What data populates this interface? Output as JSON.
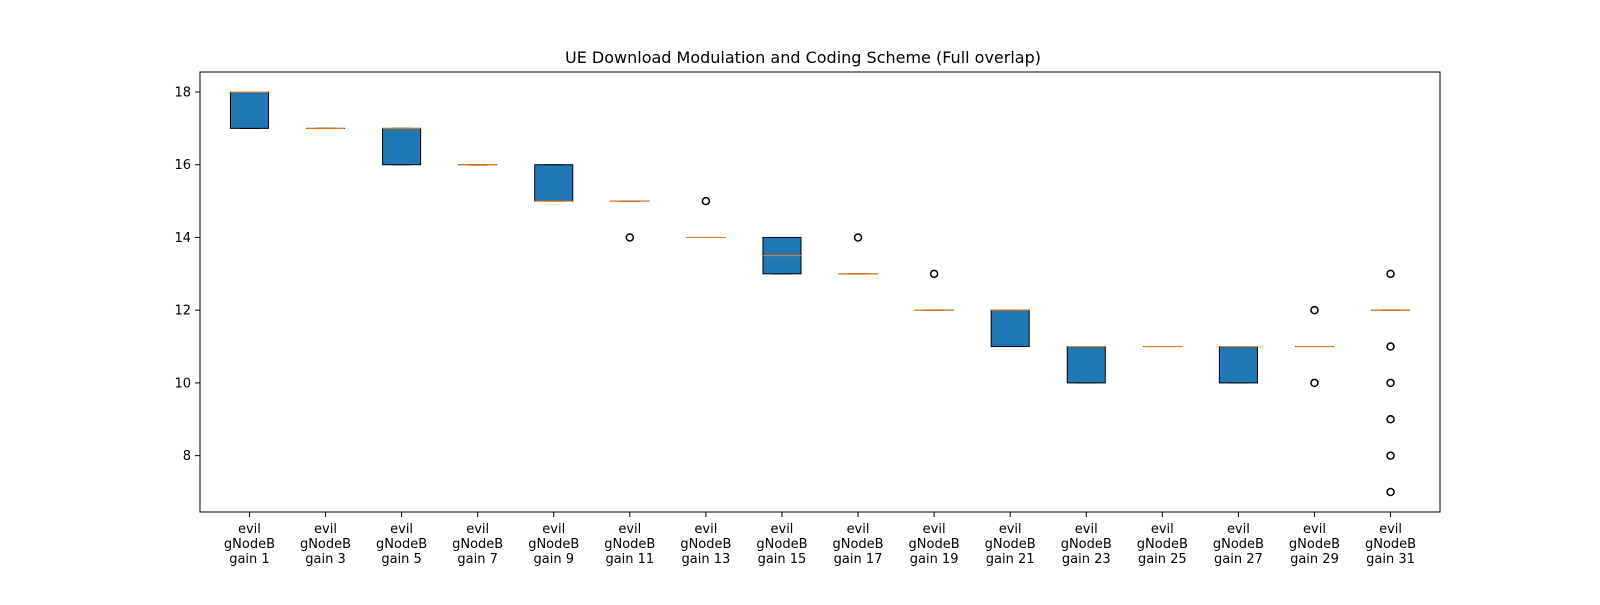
{
  "chart_data": {
    "type": "boxplot",
    "title": "UE Download Modulation and Coding Scheme (Full overlap)",
    "xlabel": "",
    "ylabel": "",
    "ylim": [
      6.45,
      18.55
    ],
    "yticks": [
      8,
      10,
      12,
      14,
      16,
      18
    ],
    "grid": false,
    "colors": {
      "box_fill": "#1f77b4",
      "median": "#ff7f0e",
      "edge": "#000000",
      "flier": "#000000"
    },
    "categories": [
      {
        "label": [
          "evil",
          "gNodeB",
          "gain 1"
        ],
        "q1": 17,
        "median": 18,
        "q3": 18,
        "whislo": 17,
        "whishi": 18,
        "fliers": []
      },
      {
        "label": [
          "evil",
          "gNodeB",
          "gain 3"
        ],
        "q1": 17,
        "median": 17,
        "q3": 17,
        "whislo": 17,
        "whishi": 17,
        "fliers": []
      },
      {
        "label": [
          "evil",
          "gNodeB",
          "gain 5"
        ],
        "q1": 16,
        "median": 17,
        "q3": 17,
        "whislo": 16,
        "whishi": 17,
        "fliers": []
      },
      {
        "label": [
          "evil",
          "gNodeB",
          "gain 7"
        ],
        "q1": 16,
        "median": 16,
        "q3": 16,
        "whislo": 16,
        "whishi": 16,
        "fliers": []
      },
      {
        "label": [
          "evil",
          "gNodeB",
          "gain 9"
        ],
        "q1": 15,
        "median": 15,
        "q3": 16,
        "whislo": 15,
        "whishi": 16,
        "fliers": []
      },
      {
        "label": [
          "evil",
          "gNodeB",
          "gain 11"
        ],
        "q1": 15,
        "median": 15,
        "q3": 15,
        "whislo": 15,
        "whishi": 15,
        "fliers": [
          14
        ]
      },
      {
        "label": [
          "evil",
          "gNodeB",
          "gain 13"
        ],
        "q1": 14,
        "median": 14,
        "q3": 14,
        "whislo": 14,
        "whishi": 14,
        "fliers": [
          15
        ]
      },
      {
        "label": [
          "evil",
          "gNodeB",
          "gain 15"
        ],
        "q1": 13,
        "median": 13.5,
        "q3": 14,
        "whislo": 13,
        "whishi": 14,
        "fliers": []
      },
      {
        "label": [
          "evil",
          "gNodeB",
          "gain 17"
        ],
        "q1": 13,
        "median": 13,
        "q3": 13,
        "whislo": 13,
        "whishi": 13,
        "fliers": [
          14
        ]
      },
      {
        "label": [
          "evil",
          "gNodeB",
          "gain 19"
        ],
        "q1": 12,
        "median": 12,
        "q3": 12,
        "whislo": 12,
        "whishi": 12,
        "fliers": [
          13
        ]
      },
      {
        "label": [
          "evil",
          "gNodeB",
          "gain 21"
        ],
        "q1": 11,
        "median": 12,
        "q3": 12,
        "whislo": 11,
        "whishi": 12,
        "fliers": []
      },
      {
        "label": [
          "evil",
          "gNodeB",
          "gain 23"
        ],
        "q1": 10,
        "median": 11,
        "q3": 11,
        "whislo": 10,
        "whishi": 11,
        "fliers": []
      },
      {
        "label": [
          "evil",
          "gNodeB",
          "gain 25"
        ],
        "q1": 11,
        "median": 11,
        "q3": 11,
        "whislo": 11,
        "whishi": 11,
        "fliers": []
      },
      {
        "label": [
          "evil",
          "gNodeB",
          "gain 27"
        ],
        "q1": 10,
        "median": 11,
        "q3": 11,
        "whislo": 10,
        "whishi": 11,
        "fliers": []
      },
      {
        "label": [
          "evil",
          "gNodeB",
          "gain 29"
        ],
        "q1": 11,
        "median": 11,
        "q3": 11,
        "whislo": 11,
        "whishi": 11,
        "fliers": [
          12,
          10
        ]
      },
      {
        "label": [
          "evil",
          "gNodeB",
          "gain 31"
        ],
        "q1": 12,
        "median": 12,
        "q3": 12,
        "whislo": 12,
        "whishi": 12,
        "fliers": [
          13,
          11,
          10,
          9,
          8,
          7
        ]
      }
    ]
  }
}
